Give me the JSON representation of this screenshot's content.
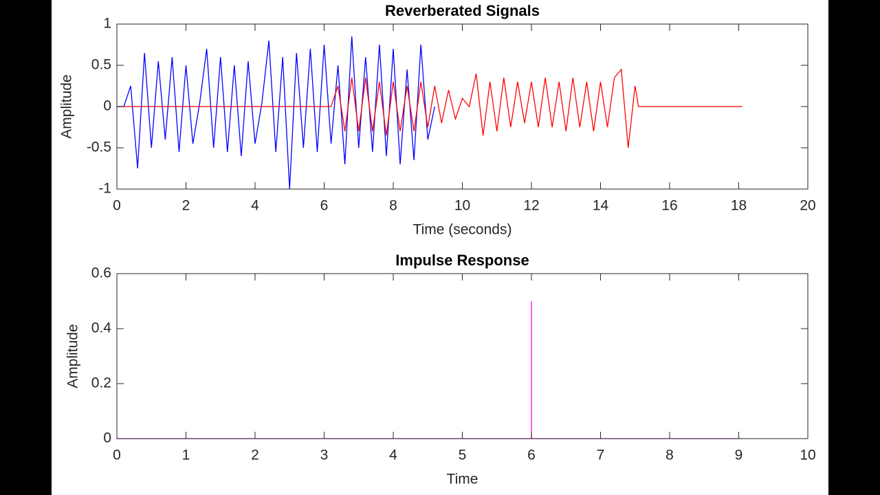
{
  "chart_data": [
    {
      "type": "line",
      "title": "Reverberated Signals",
      "xlabel": "Time (seconds)",
      "ylabel": "Amplitude",
      "xlim": [
        0,
        20
      ],
      "xticks": [
        0,
        2,
        4,
        6,
        8,
        10,
        12,
        14,
        16,
        18,
        20
      ],
      "ylim": [
        -1,
        1
      ],
      "yticks": [
        -1,
        -0.5,
        0,
        0.5,
        1
      ],
      "series": [
        {
          "color": "#0000ff",
          "x": [
            0,
            0.2,
            0.4,
            0.6,
            0.8,
            1.0,
            1.2,
            1.4,
            1.6,
            1.8,
            2.0,
            2.2,
            2.4,
            2.6,
            2.8,
            3.0,
            3.2,
            3.4,
            3.6,
            3.8,
            4.0,
            4.2,
            4.4,
            4.6,
            4.8,
            5.0,
            5.2,
            5.4,
            5.6,
            5.8,
            6.0,
            6.2,
            6.4,
            6.6,
            6.8,
            7.0,
            7.2,
            7.4,
            7.6,
            7.8,
            8.0,
            8.2,
            8.4,
            8.6,
            8.8,
            9.0,
            9.2
          ],
          "values": [
            0,
            0,
            0.25,
            -0.75,
            0.65,
            -0.5,
            0.55,
            -0.4,
            0.6,
            -0.55,
            0.5,
            -0.45,
            0.05,
            0.7,
            -0.5,
            0.6,
            -0.55,
            0.5,
            -0.6,
            0.55,
            -0.45,
            0.05,
            0.8,
            -0.55,
            0.6,
            -1,
            0.65,
            -0.5,
            0.7,
            -0.55,
            0.75,
            -0.45,
            0.5,
            -0.7,
            0.85,
            -0.5,
            0.6,
            -0.55,
            0.75,
            -0.6,
            0.7,
            -0.7,
            0.45,
            -0.65,
            0.75,
            -0.4,
            0
          ]
        },
        {
          "color": "#ff0000",
          "x": [
            0,
            6.2,
            6.4,
            6.6,
            6.8,
            7.0,
            7.2,
            7.4,
            7.6,
            7.8,
            8.0,
            8.2,
            8.4,
            8.6,
            8.8,
            9.0,
            9.2,
            9.4,
            9.6,
            9.8,
            10.0,
            10.2,
            10.4,
            10.6,
            10.8,
            11.0,
            11.2,
            11.4,
            11.6,
            11.8,
            12.0,
            12.2,
            12.4,
            12.6,
            12.8,
            13.0,
            13.2,
            13.4,
            13.6,
            13.8,
            14.0,
            14.2,
            14.4,
            14.6,
            14.8,
            15.0,
            15.1,
            18.1
          ],
          "values": [
            0,
            0,
            0.25,
            -0.3,
            0.35,
            -0.3,
            0.35,
            -0.3,
            0.3,
            -0.35,
            0.3,
            -0.3,
            0.25,
            -0.3,
            0.3,
            -0.25,
            0.25,
            -0.2,
            0.2,
            -0.15,
            0.1,
            0,
            0.4,
            -0.35,
            0.3,
            -0.3,
            0.35,
            -0.25,
            0.3,
            -0.2,
            0.3,
            -0.25,
            0.35,
            -0.25,
            0.3,
            -0.3,
            0.35,
            -0.25,
            0.3,
            -0.3,
            0.3,
            -0.25,
            0.35,
            0.45,
            -0.5,
            0.25,
            0,
            0
          ]
        }
      ]
    },
    {
      "type": "line",
      "title": "Impulse Response",
      "xlabel": "Time",
      "ylabel": "Amplitude",
      "xlim": [
        0,
        10
      ],
      "xticks": [
        0,
        1,
        2,
        3,
        4,
        5,
        6,
        7,
        8,
        9,
        10
      ],
      "ylim": [
        0,
        0.6
      ],
      "yticks": [
        0,
        0.2,
        0.4,
        0.6
      ],
      "series": [
        {
          "color": "#ff00ff",
          "x": [
            0,
            6,
            6,
            6,
            9.05
          ],
          "values": [
            0,
            0,
            0.5,
            0,
            0
          ]
        }
      ]
    }
  ]
}
